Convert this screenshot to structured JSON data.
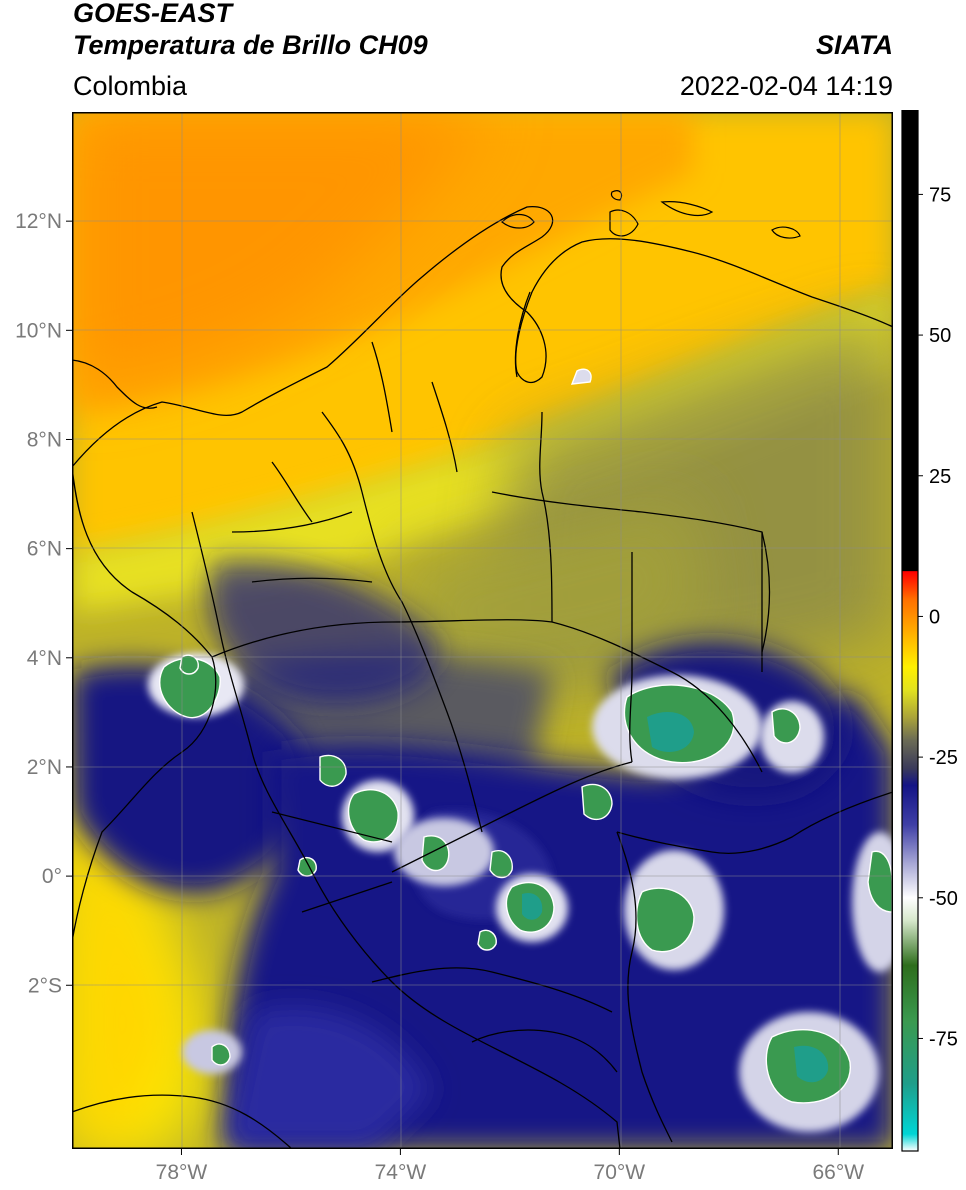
{
  "header": {
    "satellite": "GOES-EAST",
    "product": "Temperatura de Brillo CH09",
    "region": "Colombia",
    "brand": "SIATA",
    "timestamp": "2022-02-04 14:19"
  },
  "axes": {
    "lon_ticks": [
      {
        "label": "78°W",
        "value": -78
      },
      {
        "label": "74°W",
        "value": -74
      },
      {
        "label": "70°W",
        "value": -70
      },
      {
        "label": "66°W",
        "value": -66
      }
    ],
    "lat_ticks": [
      {
        "label": "12°N",
        "value": 12
      },
      {
        "label": "10°N",
        "value": 10
      },
      {
        "label": "8°N",
        "value": 8
      },
      {
        "label": "6°N",
        "value": 6
      },
      {
        "label": "4°N",
        "value": 4
      },
      {
        "label": "2°N",
        "value": 2
      },
      {
        "label": "0°",
        "value": 0
      },
      {
        "label": "2°S",
        "value": -2
      }
    ],
    "lon_range": [
      -80,
      -65
    ],
    "lat_range": [
      -5,
      14
    ],
    "gridlines": true
  },
  "colorbar": {
    "range": [
      -95,
      90
    ],
    "ticks": [
      {
        "label": "75",
        "value": 75
      },
      {
        "label": "50",
        "value": 50
      },
      {
        "label": "25",
        "value": 25
      },
      {
        "label": "0",
        "value": 0
      },
      {
        "label": "-25",
        "value": -25
      },
      {
        "label": "-50",
        "value": -50
      },
      {
        "label": "-75",
        "value": -75
      }
    ],
    "stops": [
      {
        "value": -95,
        "color": "#ffffff"
      },
      {
        "value": -92,
        "color": "#00d5d5"
      },
      {
        "value": -83,
        "color": "#1f9e8a"
      },
      {
        "value": -72,
        "color": "#3a9a50"
      },
      {
        "value": -62,
        "color": "#2e6e1c"
      },
      {
        "value": -54,
        "color": "#d7e8cc"
      },
      {
        "value": -50,
        "color": "#ffffff"
      },
      {
        "value": -44,
        "color": "#a9a9d6"
      },
      {
        "value": -37,
        "color": "#3f3fa6"
      },
      {
        "value": -30,
        "color": "#141486"
      },
      {
        "value": -27,
        "color": "#3a3a5a"
      },
      {
        "value": -22,
        "color": "#6b6b55"
      },
      {
        "value": -18,
        "color": "#a9a33a"
      },
      {
        "value": -13,
        "color": "#e3e31f"
      },
      {
        "value": -9,
        "color": "#fff000"
      },
      {
        "value": -2,
        "color": "#ffa500"
      },
      {
        "value": 3,
        "color": "#ff7000"
      },
      {
        "value": 6,
        "color": "#ff2a00"
      },
      {
        "value": 8,
        "color": "#ff0000"
      },
      {
        "value": 8.1,
        "color": "#000000"
      },
      {
        "value": 90,
        "color": "#000000"
      }
    ]
  }
}
